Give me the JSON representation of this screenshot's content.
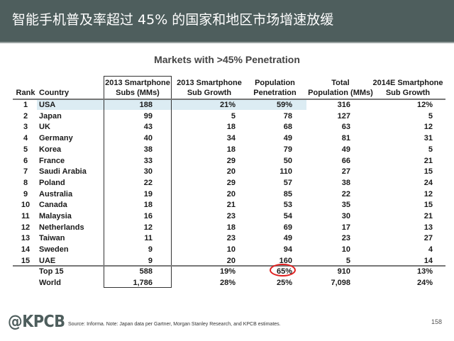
{
  "header": {
    "title": "智能手机普及率超过 45% 的国家和地区市场增速放缓"
  },
  "table": {
    "title": "Markets with >45% Penetration",
    "columns": [
      {
        "line1": "",
        "line2": "Rank"
      },
      {
        "line1": "",
        "line2": "Country"
      },
      {
        "line1": "2013 Smartphone",
        "line2": "Subs (MMs)"
      },
      {
        "line1": "2013 Smartphone",
        "line2": "Sub Growth"
      },
      {
        "line1": "Population",
        "line2": "Penetration"
      },
      {
        "line1": "Total",
        "line2": "Population (MMs)"
      },
      {
        "line1": "2014E Smartphone",
        "line2": "Sub Growth"
      }
    ],
    "rows": [
      {
        "rank": "1",
        "country": "USA",
        "subs": "188",
        "growth": "21%",
        "pen": "59%",
        "pop": "316",
        "growth14": "12%"
      },
      {
        "rank": "2",
        "country": "Japan",
        "subs": "99",
        "growth": "5",
        "pen": "78",
        "pop": "127",
        "growth14": "5"
      },
      {
        "rank": "3",
        "country": "UK",
        "subs": "43",
        "growth": "18",
        "pen": "68",
        "pop": "63",
        "growth14": "12"
      },
      {
        "rank": "4",
        "country": "Germany",
        "subs": "40",
        "growth": "34",
        "pen": "49",
        "pop": "81",
        "growth14": "31"
      },
      {
        "rank": "5",
        "country": "Korea",
        "subs": "38",
        "growth": "18",
        "pen": "79",
        "pop": "49",
        "growth14": "5"
      },
      {
        "rank": "6",
        "country": "France",
        "subs": "33",
        "growth": "29",
        "pen": "50",
        "pop": "66",
        "growth14": "21"
      },
      {
        "rank": "7",
        "country": "Saudi Arabia",
        "subs": "30",
        "growth": "20",
        "pen": "110",
        "pop": "27",
        "growth14": "15"
      },
      {
        "rank": "8",
        "country": "Poland",
        "subs": "22",
        "growth": "29",
        "pen": "57",
        "pop": "38",
        "growth14": "24"
      },
      {
        "rank": "9",
        "country": "Australia",
        "subs": "19",
        "growth": "20",
        "pen": "85",
        "pop": "22",
        "growth14": "12"
      },
      {
        "rank": "10",
        "country": "Canada",
        "subs": "18",
        "growth": "21",
        "pen": "53",
        "pop": "35",
        "growth14": "15"
      },
      {
        "rank": "11",
        "country": "Malaysia",
        "subs": "16",
        "growth": "23",
        "pen": "54",
        "pop": "30",
        "growth14": "21"
      },
      {
        "rank": "12",
        "country": "Netherlands",
        "subs": "12",
        "growth": "18",
        "pen": "69",
        "pop": "17",
        "growth14": "13"
      },
      {
        "rank": "13",
        "country": "Taiwan",
        "subs": "11",
        "growth": "23",
        "pen": "49",
        "pop": "23",
        "growth14": "27"
      },
      {
        "rank": "14",
        "country": "Sweden",
        "subs": "9",
        "growth": "10",
        "pen": "94",
        "pop": "10",
        "growth14": "4"
      },
      {
        "rank": "15",
        "country": "UAE",
        "subs": "9",
        "growth": "20",
        "pen": "160",
        "pop": "5",
        "growth14": "14"
      }
    ],
    "totals": [
      {
        "rank": "",
        "country": "Top 15",
        "subs": "588",
        "growth": "19%",
        "pen": "65%",
        "pop": "910",
        "growth14": "13%"
      },
      {
        "rank": "",
        "country": "World",
        "subs": "1,786",
        "growth": "28%",
        "pen": "25%",
        "pop": "7,098",
        "growth14": "24%"
      }
    ],
    "highlight_color": "#dcecf3",
    "circle_color": "#e02020"
  },
  "footer": {
    "logo": "@KPCB",
    "source": "Source: Informa. Note: Japan data per Gartner, Morgan Stanley Research, and KPCB estimates.",
    "page_number": "158"
  }
}
